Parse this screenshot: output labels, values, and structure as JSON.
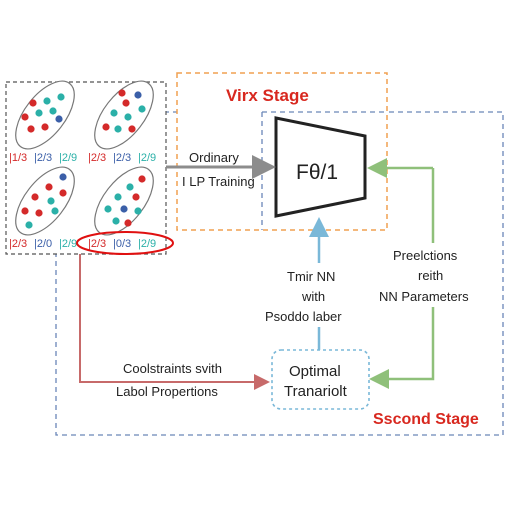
{
  "stages": {
    "first": "Virx Stage",
    "second": "Sscond Stage"
  },
  "model_box": {
    "label": "Fθ/1"
  },
  "ot_box": {
    "line1": "Optimal",
    "line2": "Tranariolt"
  },
  "edges": {
    "ordinary": {
      "line1": "Ordinary",
      "line2": "I LP Training"
    },
    "constraints": {
      "line1": "Coolstraints svith",
      "line2": "Labol Propertions"
    },
    "train_nn": {
      "line1": "Tmir NN",
      "line2": "with",
      "line3": "Psoddo laber"
    },
    "predictions": {
      "line1": "Preelctions",
      "line2": "reith",
      "line3": "NN Parameters"
    }
  },
  "bags": [
    {
      "props": [
        "1/3",
        "2/3",
        "2/9"
      ]
    },
    {
      "props": [
        "2/3",
        "2/3",
        "2/9"
      ]
    },
    {
      "props": [
        "2/3",
        "2/0",
        "2/9"
      ]
    },
    {
      "props": [
        "2/3",
        "0/3",
        "2/9"
      ]
    }
  ],
  "colors": {
    "first_stage_border": "#f0a050",
    "second_stage_border": "#6a86b8",
    "stage_title": "#d8281f",
    "dot_red": "#d42a2a",
    "dot_teal": "#2bb0a8",
    "dot_blue": "#3b5fa8",
    "arrow_gray": "#8c8c8c",
    "arrow_red": "#c76a6a",
    "arrow_blue": "#7ab8d8",
    "arrow_green": "#8fc07a",
    "highlight_ellipse": "#e01010"
  }
}
